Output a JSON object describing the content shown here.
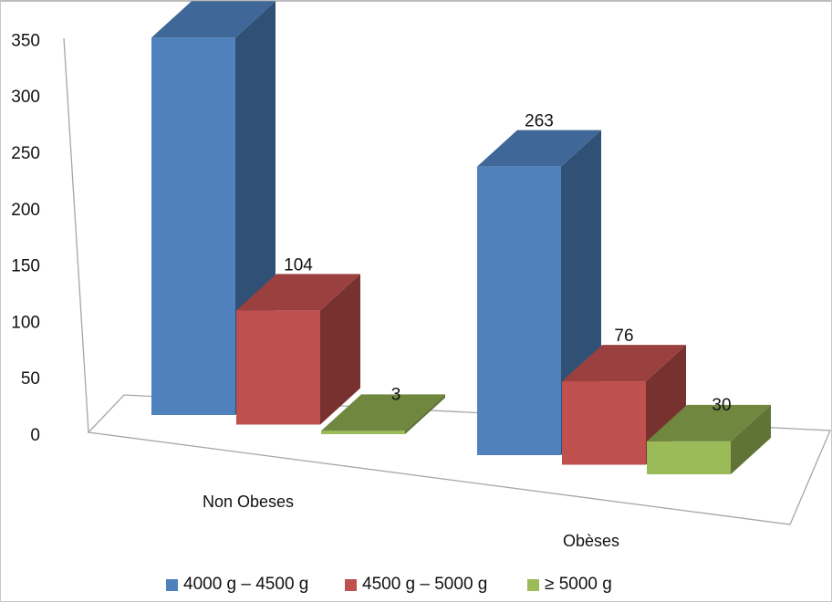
{
  "chart_data": {
    "type": "bar",
    "categories": [
      "Non Obeses",
      "Obèses"
    ],
    "series": [
      {
        "name": "4000 g – 4500 g",
        "values": [
          344,
          263
        ],
        "color": "#4F81BD"
      },
      {
        "name": "4500 g – 5000 g",
        "values": [
          104,
          76
        ],
        "color": "#C0504D"
      },
      {
        "name": "≥ 5000 g",
        "values": [
          3,
          30
        ],
        "color": "#9BBB59"
      }
    ],
    "y_ticks": [
      "0",
      "50",
      "100",
      "150",
      "200",
      "250",
      "300",
      "350"
    ],
    "ylim": [
      0,
      350
    ],
    "style": "3d-clustered-column",
    "legend_position": "bottom",
    "grid": false,
    "title": "",
    "xlabel": "",
    "ylabel": ""
  }
}
